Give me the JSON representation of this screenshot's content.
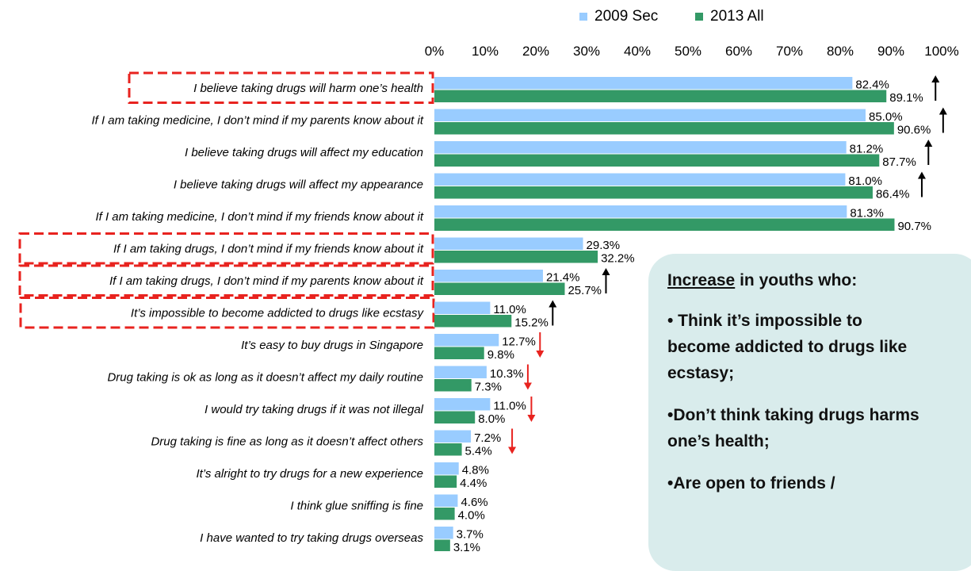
{
  "legend": {
    "label_2009": "2009 Sec",
    "label_2013": "2013 All"
  },
  "chart_data": {
    "type": "bar",
    "orientation": "horizontal",
    "xlim": [
      0,
      100
    ],
    "tick_labels": [
      "0%",
      "10%",
      "20%",
      "30%",
      "40%",
      "50%",
      "60%",
      "70%",
      "80%",
      "90%",
      "100%"
    ],
    "categories": [
      "I believe taking drugs will harm one’s health",
      "If I am taking medicine, I don’t mind if my parents know about it",
      "I believe taking drugs will affect my education",
      "I believe taking drugs will affect my appearance",
      "If I am taking medicine, I don’t mind if my friends know about it",
      "If I am taking drugs, I don’t mind if my friends know about it",
      "If I am taking drugs, I don’t mind if my parents know about it",
      "It’s impossible to become addicted to drugs like ecstasy",
      "It’s easy to buy drugs in Singapore",
      "Drug taking is ok as long as it doesn’t affect my daily routine",
      "I would try taking drugs if it was not illegal",
      "Drug taking is fine as long as it doesn’t affect others",
      "It’s alright to try drugs for a new experience",
      "I think glue sniffing is fine",
      "I have wanted to try taking drugs overseas"
    ],
    "series": [
      {
        "name": "2009 Sec",
        "color": "#99ccff",
        "values": [
          82.4,
          85.0,
          81.2,
          81.0,
          81.3,
          29.3,
          21.4,
          11.0,
          12.7,
          10.3,
          11.0,
          7.2,
          4.8,
          4.6,
          3.7
        ],
        "labels": [
          "82.4%",
          "85.0%",
          "81.2%",
          "81.0%",
          "81.3%",
          "29.3%",
          "21.4%",
          "11.0%",
          "12.7%",
          "10.3%",
          "11.0%",
          "7.2%",
          "4.8%",
          "4.6%",
          "3.7%"
        ]
      },
      {
        "name": "2013 All",
        "color": "#339966",
        "values": [
          89.1,
          90.6,
          87.7,
          86.4,
          90.7,
          32.2,
          25.7,
          15.2,
          9.8,
          7.3,
          8.0,
          5.4,
          4.4,
          4.0,
          3.1
        ],
        "labels": [
          "89.1%",
          "90.6%",
          "87.7%",
          "86.4%",
          "90.7%",
          "32.2%",
          "25.7%",
          "15.2%",
          "9.8%",
          "7.3%",
          "8.0%",
          "5.4%",
          "4.4%",
          "4.0%",
          "3.1%"
        ]
      }
    ],
    "trend_arrows": [
      "up",
      "up",
      "up",
      "up",
      "",
      "",
      "up",
      "up",
      "down",
      "down",
      "down",
      "down",
      "",
      "",
      ""
    ],
    "highlighted_rows": [
      0,
      5,
      6,
      7
    ],
    "highlight_color": "#e8231f",
    "up_arrow_color": "#000000",
    "down_arrow_color": "#e8231f"
  },
  "callout": {
    "heading_underlined": "Increase",
    "heading_rest": " in youths who:",
    "items": [
      "• Think it’s impossible to become addicted to drugs like ecstasy;",
      "•Don’t think taking drugs harms one’s health;",
      "•Are open to friends /"
    ]
  }
}
